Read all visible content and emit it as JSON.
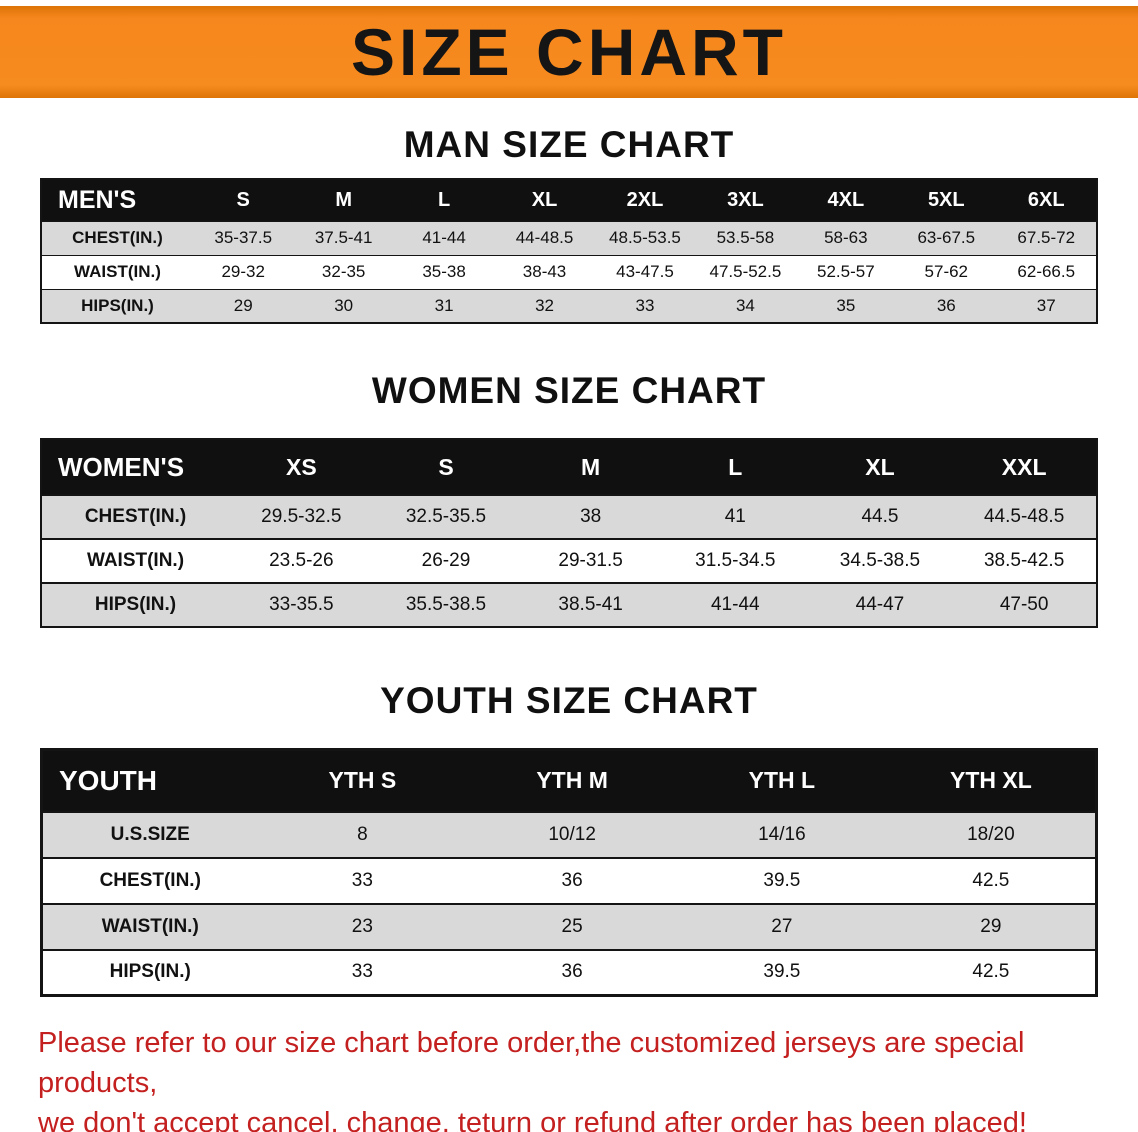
{
  "banner": {
    "title": "SIZE CHART",
    "bg": "#f68b1f"
  },
  "men": {
    "heading": "MAN SIZE CHART",
    "table": {
      "header": [
        "MEN'S",
        "S",
        "M",
        "L",
        "XL",
        "2XL",
        "3XL",
        "4XL",
        "5XL",
        "6XL"
      ],
      "rows": [
        [
          "CHEST(IN.)",
          "35-37.5",
          "37.5-41",
          "41-44",
          "44-48.5",
          "48.5-53.5",
          "53.5-58",
          "58-63",
          "63-67.5",
          "67.5-72"
        ],
        [
          "WAIST(IN.)",
          "29-32",
          "32-35",
          "35-38",
          "38-43",
          "43-47.5",
          "47.5-52.5",
          "52.5-57",
          "57-62",
          "62-66.5"
        ],
        [
          "HIPS(IN.)",
          "29",
          "30",
          "31",
          "32",
          "33",
          "34",
          "35",
          "36",
          "37"
        ]
      ]
    }
  },
  "women": {
    "heading": "WOMEN SIZE CHART",
    "table": {
      "header": [
        "WOMEN'S",
        "XS",
        "S",
        "M",
        "L",
        "XL",
        "XXL"
      ],
      "rows": [
        [
          "CHEST(IN.)",
          "29.5-32.5",
          "32.5-35.5",
          "38",
          "41",
          "44.5",
          "44.5-48.5"
        ],
        [
          "WAIST(IN.)",
          "23.5-26",
          "26-29",
          "29-31.5",
          "31.5-34.5",
          "34.5-38.5",
          "38.5-42.5"
        ],
        [
          "HIPS(IN.)",
          "33-35.5",
          "35.5-38.5",
          "38.5-41",
          "41-44",
          "44-47",
          "47-50"
        ]
      ]
    }
  },
  "youth": {
    "heading": "YOUTH SIZE CHART",
    "table": {
      "header": [
        "YOUTH",
        "YTH S",
        "YTH M",
        "YTH L",
        "YTH XL"
      ],
      "rows": [
        [
          "U.S.SIZE",
          "8",
          "10/12",
          "14/16",
          "18/20"
        ],
        [
          "CHEST(IN.)",
          "33",
          "36",
          "39.5",
          "42.5"
        ],
        [
          "WAIST(IN.)",
          "23",
          "25",
          "27",
          "29"
        ],
        [
          "HIPS(IN.)",
          "33",
          "36",
          "39.5",
          "42.5"
        ]
      ]
    }
  },
  "footer": {
    "line1": "Please refer to our size chart before order,the customized jerseys are special products,",
    "line2": "we don't accept cancel, change, teturn or refund after order has been placed!"
  }
}
